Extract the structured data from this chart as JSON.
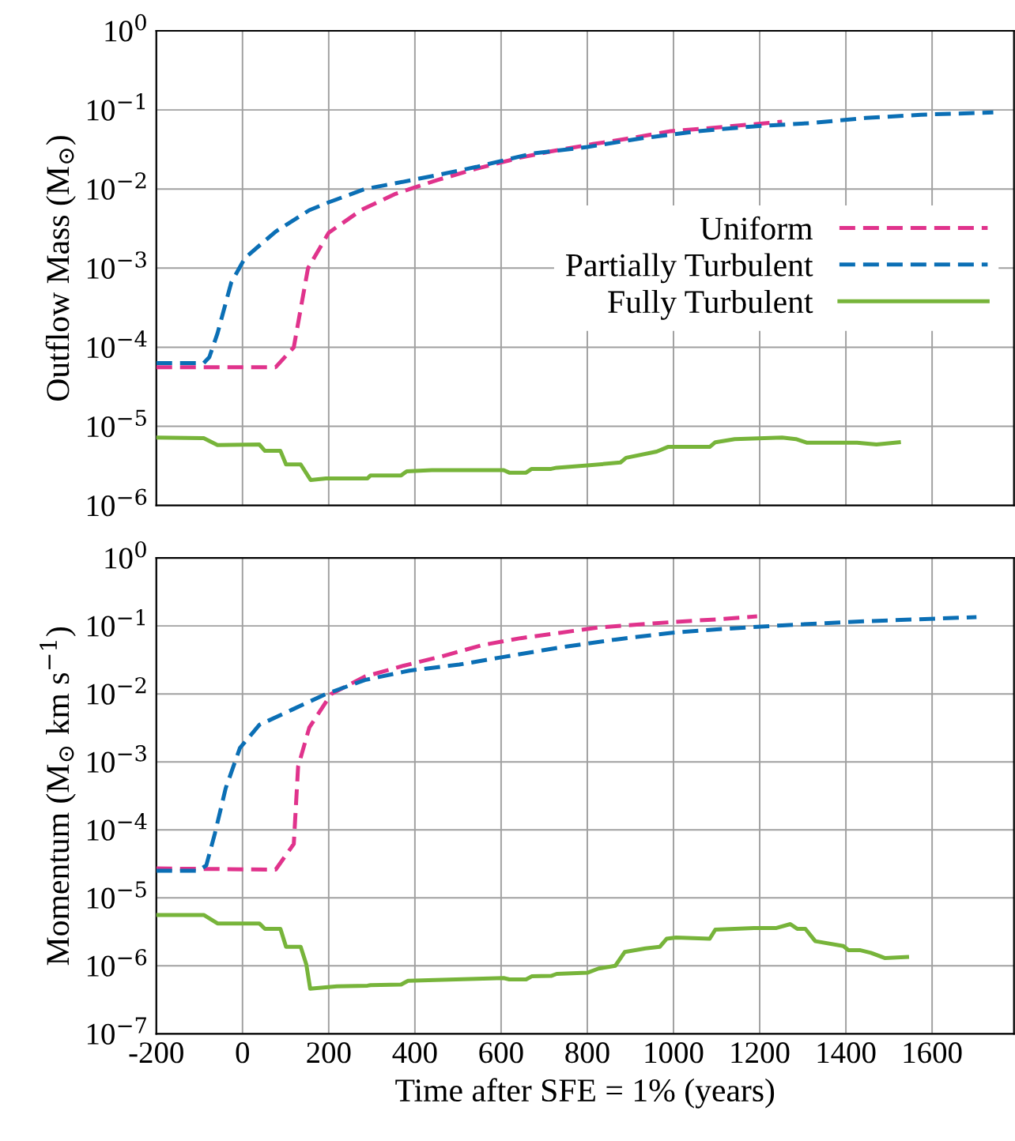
{
  "chart_data": [
    {
      "type": "line",
      "ylabel": "Outflow Mass (M$_{⊙}$)",
      "log": "y",
      "grid": true,
      "legend": "right",
      "tick_labels": "y",
      "xlim": [
        -200,
        1790
      ],
      "xticks": [
        -200,
        0,
        200,
        400,
        600,
        800,
        1000,
        1200,
        1400,
        1600
      ],
      "ylim": [
        1e-06,
        1
      ],
      "yticks": [
        {
          "value": 1,
          "label": "10$^{0}$"
        },
        {
          "value": 0.1,
          "label": "10$^{−1}$"
        },
        {
          "value": 0.01,
          "label": "10$^{−2}$"
        },
        {
          "value": 0.001,
          "label": "10$^{−3}$"
        },
        {
          "value": 0.0001,
          "label": "10$^{−4}$"
        },
        {
          "value": 1e-05,
          "label": "10$^{−5}$"
        },
        {
          "value": 1e-06,
          "label": "10$^{−6}$"
        }
      ],
      "series": [
        {
          "name": "Uniform",
          "color": "#e0338c",
          "line_style": "dashed",
          "x": [
            -200,
            77,
            119,
            152,
            200,
            277,
            355,
            452,
            542,
            645,
            716,
            813,
            890,
            994,
            1071,
            1187,
            1252
          ],
          "values": [
            5.6e-05,
            5.6e-05,
            0.0001,
            0.001,
            0.0028,
            0.0055,
            0.0087,
            0.013,
            0.018,
            0.025,
            0.03,
            0.037,
            0.043,
            0.054,
            0.058,
            0.066,
            0.071
          ]
        },
        {
          "name": "Partially Turbulent",
          "color": "#0b6fb5",
          "line_style": "dashed",
          "x": [
            -200,
            -90,
            -77,
            -58,
            -26,
            6,
            77,
            155,
            200,
            284,
            361,
            452,
            542,
            671,
            800,
            929,
            1058,
            1187,
            1316,
            1445,
            1574,
            1742
          ],
          "values": [
            6.3e-05,
            6.3e-05,
            7.5e-05,
            0.00015,
            0.00066,
            0.00135,
            0.0029,
            0.0054,
            0.0068,
            0.01,
            0.012,
            0.015,
            0.019,
            0.028,
            0.034,
            0.044,
            0.054,
            0.062,
            0.068,
            0.079,
            0.087,
            0.093
          ]
        },
        {
          "name": "Fully Turbulent",
          "color": "#77b43a",
          "line_style": "solid",
          "x": [
            -200,
            -90,
            -58,
            39,
            52,
            88,
            101,
            135,
            158,
            194,
            290,
            297,
            368,
            381,
            439,
            606,
            619,
            658,
            671,
            716,
            729,
            800,
            877,
            890,
            961,
            987,
            1084,
            1097,
            1142,
            1252,
            1284,
            1310,
            1426,
            1471,
            1523
          ],
          "values": [
            7.2e-06,
            7.1e-06,
            5.8e-06,
            5.9e-06,
            4.9e-06,
            4.9e-06,
            3.3e-06,
            3.3e-06,
            2.1e-06,
            2.2e-06,
            2.2e-06,
            2.4e-06,
            2.4e-06,
            2.7e-06,
            2.8e-06,
            2.8e-06,
            2.6e-06,
            2.6e-06,
            2.9e-06,
            2.9e-06,
            3e-06,
            3.2e-06,
            3.5e-06,
            4e-06,
            4.8e-06,
            5.5e-06,
            5.5e-06,
            6.3e-06,
            6.9e-06,
            7.2e-06,
            6.9e-06,
            6.2e-06,
            6.2e-06,
            5.9e-06,
            6.3e-06
          ]
        }
      ]
    },
    {
      "type": "line",
      "ylabel": "Momentum (M$_{⊙}$ km s$^{−1}$)",
      "xlabel": "Time after SFE = 1% (years)",
      "log": "y",
      "grid": true,
      "xlim": [
        -200,
        1790
      ],
      "xticks": [
        -200,
        0,
        200,
        400,
        600,
        800,
        1000,
        1200,
        1400,
        1600
      ],
      "ylim": [
        1e-07,
        1
      ],
      "yticks": [
        {
          "value": 1,
          "label": "10$^{0}$"
        },
        {
          "value": 0.1,
          "label": "10$^{−1}$"
        },
        {
          "value": 0.01,
          "label": "10$^{−2}$"
        },
        {
          "value": 0.001,
          "label": "10$^{−3}$"
        },
        {
          "value": 0.0001,
          "label": "10$^{−4}$"
        },
        {
          "value": 1e-05,
          "label": "10$^{−5}$"
        },
        {
          "value": 1e-06,
          "label": "10$^{−6}$"
        },
        {
          "value": 1e-07,
          "label": "10$^{−7}$"
        }
      ],
      "series": [
        {
          "color": "#e0338c",
          "line_style": "dashed",
          "x": [
            -200,
            77,
            119,
            129,
            155,
            206,
            284,
            374,
            465,
            555,
            645,
            735,
            826,
            1006,
            1110,
            1194
          ],
          "values": [
            2.7e-05,
            2.6e-05,
            6.2e-05,
            0.00085,
            0.0032,
            0.01,
            0.018,
            0.026,
            0.036,
            0.052,
            0.066,
            0.079,
            0.095,
            0.115,
            0.126,
            0.138
          ]
        },
        {
          "color": "#0b6fb5",
          "line_style": "dashed",
          "x": [
            -200,
            -103,
            -84,
            -64,
            -39,
            -6,
            39,
            116,
            194,
            284,
            387,
            503,
            606,
            735,
            865,
            994,
            1123,
            1252,
            1445,
            1703
          ],
          "values": [
            2.5e-05,
            2.5e-05,
            3e-05,
            8.9e-05,
            0.00041,
            0.0016,
            0.0035,
            0.0059,
            0.01,
            0.016,
            0.022,
            0.027,
            0.035,
            0.048,
            0.063,
            0.079,
            0.091,
            0.102,
            0.117,
            0.135
          ]
        },
        {
          "color": "#77b43a",
          "line_style": "solid",
          "x": [
            -200,
            -90,
            -58,
            39,
            52,
            88,
            101,
            135,
            148,
            157,
            219,
            290,
            297,
            368,
            384,
            606,
            619,
            658,
            671,
            716,
            729,
            800,
            826,
            865,
            887,
            935,
            968,
            984,
            1006,
            1084,
            1097,
            1187,
            1239,
            1271,
            1287,
            1306,
            1329,
            1394,
            1406,
            1432,
            1458,
            1490,
            1542
          ],
          "values": [
            5.6e-06,
            5.6e-06,
            4.2e-06,
            4.2e-06,
            3.5e-06,
            3.5e-06,
            1.9e-06,
            1.9e-06,
            1.05e-06,
            4.6e-07,
            5e-07,
            5.1e-07,
            5.2e-07,
            5.3e-07,
            6e-07,
            6.6e-07,
            6.3e-07,
            6.3e-07,
            7e-07,
            7.1e-07,
            7.6e-07,
            7.9e-07,
            9.1e-07,
            1e-06,
            1.6e-06,
            1.8e-06,
            1.9e-06,
            2.5e-06,
            2.6e-06,
            2.5e-06,
            3.4e-06,
            3.6e-06,
            3.6e-06,
            4.1e-06,
            3.5e-06,
            3.5e-06,
            2.3e-06,
            1.95e-06,
            1.7e-06,
            1.7e-06,
            1.55e-06,
            1.3e-06,
            1.35e-06
          ]
        }
      ]
    }
  ]
}
